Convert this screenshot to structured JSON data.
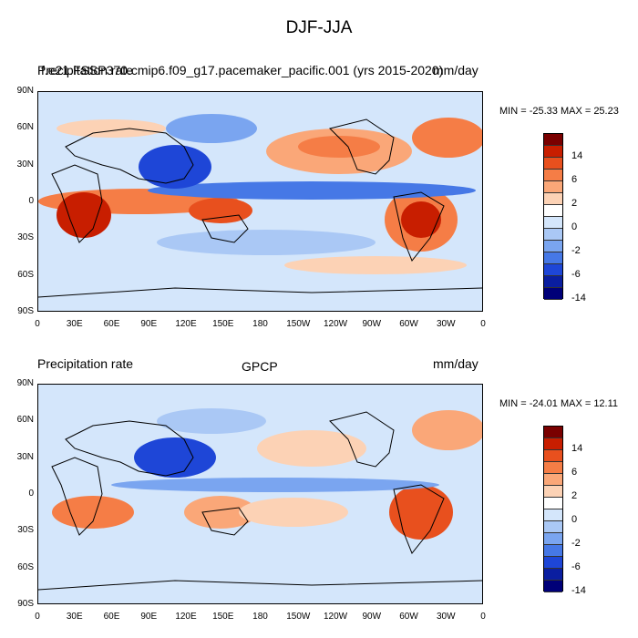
{
  "title": "DJF-JJA",
  "panels": [
    {
      "left_label": "Precipitation rate",
      "center_label": "f.e21.FSSP370.cmip6.f09_g17.pacemaker_pacific.001 (yrs 2015-2020)",
      "right_label": "mm/day",
      "stats": "MIN = -25.33 MAX =  25.23"
    },
    {
      "left_label": "Precipitation rate",
      "center_label": "GPCP",
      "right_label": "mm/day",
      "stats": "MIN = -24.01 MAX =  12.11"
    }
  ],
  "lat_ticks": [
    "90N",
    "60N",
    "30N",
    "0",
    "30S",
    "60S",
    "90S"
  ],
  "lon_ticks": [
    "0",
    "30E",
    "60E",
    "90E",
    "120E",
    "150E",
    "180",
    "150W",
    "120W",
    "90W",
    "60W",
    "30W",
    "0"
  ],
  "colorbar": {
    "colors": [
      "#7a0000",
      "#c81e00",
      "#e8501e",
      "#f57d46",
      "#faa778",
      "#fcd2b5",
      "#ffffff",
      "#d4e6fb",
      "#aac8f5",
      "#7aa5f0",
      "#4678e6",
      "#1e46d7",
      "#0a1ea0",
      "#000078"
    ],
    "labels": [
      "14",
      "6",
      "2",
      "0",
      "-2",
      "-6",
      "-14"
    ]
  }
}
